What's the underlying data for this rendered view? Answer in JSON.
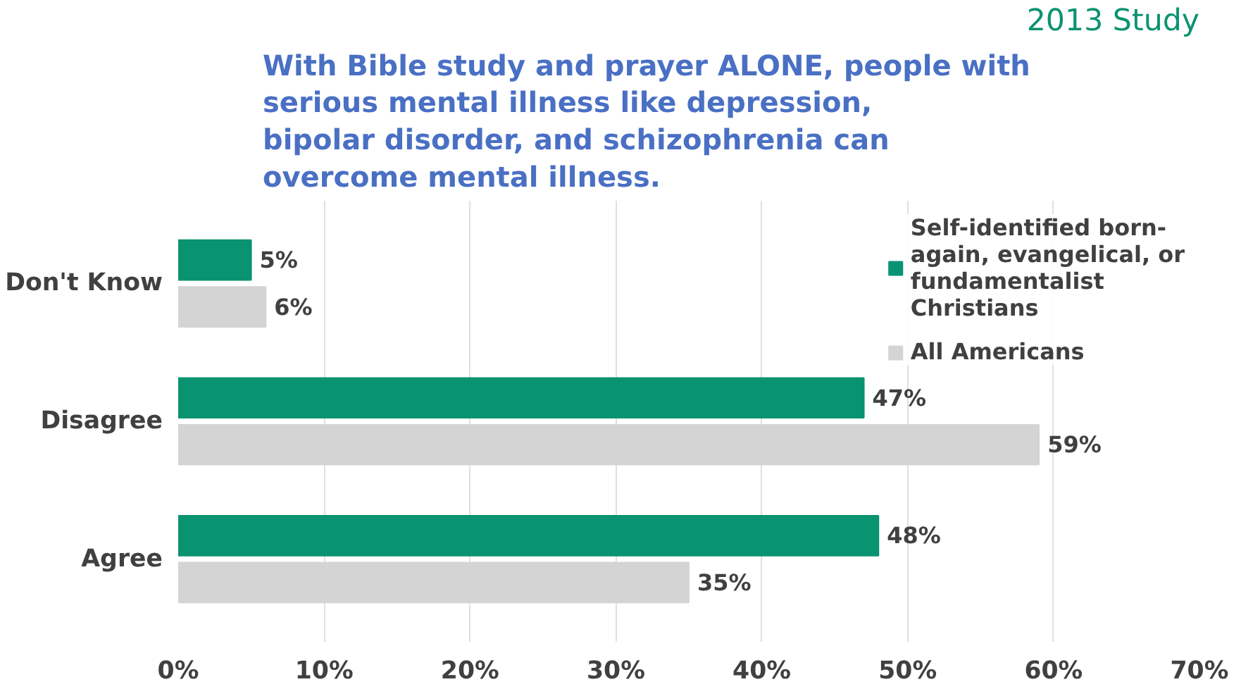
{
  "chart_data": {
    "type": "bar",
    "orientation": "horizontal",
    "title": "With Bible study and prayer ALONE, people with serious mental illness like depression, bipolar disorder, and schizophrenia can overcome mental illness.",
    "categories": [
      "Don't Know",
      "Disagree",
      "Agree"
    ],
    "series": [
      {
        "name": "Self-identified born-again, evangelical, or fundamentalist Christians",
        "color": "#0a9370",
        "values": [
          5,
          47,
          48
        ],
        "value_labels": [
          "5%",
          "47%",
          "48%"
        ]
      },
      {
        "name": "All Americans",
        "color": "#d4d4d4",
        "values": [
          6,
          59,
          35
        ],
        "value_labels": [
          "6%",
          "59%",
          "35%"
        ]
      }
    ],
    "xlim": [
      0,
      70
    ],
    "xticks": [
      {
        "value": 0,
        "label": "0%"
      },
      {
        "value": 10,
        "label": "10%"
      },
      {
        "value": 20,
        "label": "20%"
      },
      {
        "value": 30,
        "label": "30%"
      },
      {
        "value": 40,
        "label": "40%"
      },
      {
        "value": 50,
        "label": "50%"
      },
      {
        "value": 60,
        "label": "60%"
      },
      {
        "value": 70,
        "label": "70%"
      }
    ],
    "grid": "x",
    "legend": "top right",
    "annotations": [
      "2013 Study"
    ]
  }
}
